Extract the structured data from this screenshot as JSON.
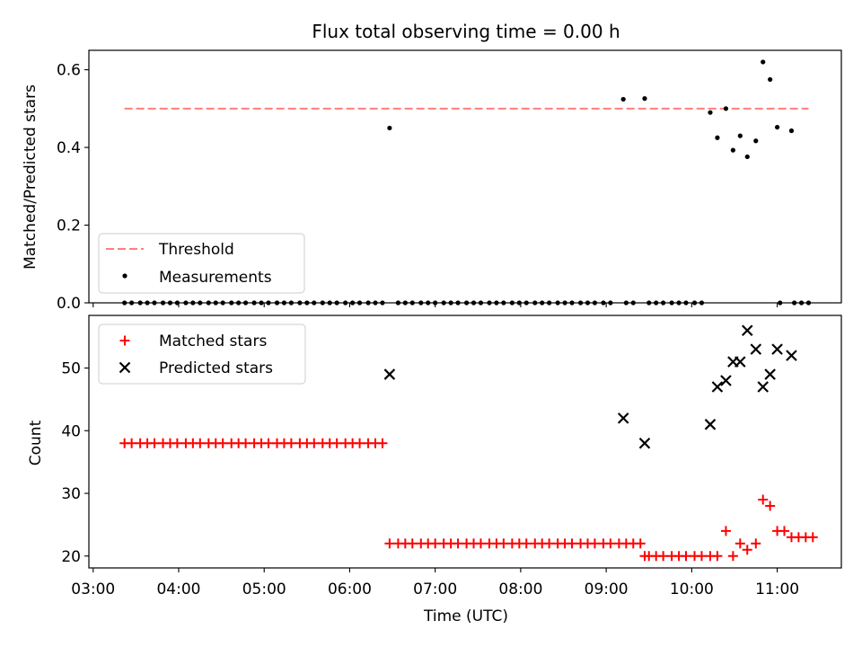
{
  "title": "Flux total observing time = 0.00 h",
  "colors": {
    "threshold": "#ff7f7f",
    "measurements": "#000000",
    "matched": "#ff0000",
    "predicted": "#000000"
  },
  "chart_data": [
    {
      "type": "scatter",
      "ylabel": "Matched/Predicted stars",
      "xlim": [
        "02:57",
        "11:45"
      ],
      "ylim": [
        0.0,
        0.65
      ],
      "yticks": [
        "0.0",
        "0.2",
        "0.4",
        "0.6"
      ],
      "legend_position": "lower-left",
      "threshold": {
        "name": "Threshold",
        "value": 0.5,
        "x_range": [
          "03:22",
          "11:22"
        ]
      },
      "series": [
        {
          "name": "Measurements",
          "marker": "dot",
          "points": [
            [
              "03:22",
              0
            ],
            [
              "03:27",
              0
            ],
            [
              "03:33",
              0
            ],
            [
              "03:38",
              0
            ],
            [
              "03:43",
              0
            ],
            [
              "03:49",
              0
            ],
            [
              "03:54",
              0
            ],
            [
              "03:59",
              0
            ],
            [
              "04:05",
              0
            ],
            [
              "04:10",
              0
            ],
            [
              "04:15",
              0
            ],
            [
              "04:21",
              0
            ],
            [
              "04:26",
              0
            ],
            [
              "04:31",
              0
            ],
            [
              "04:37",
              0
            ],
            [
              "04:42",
              0
            ],
            [
              "04:47",
              0
            ],
            [
              "04:53",
              0
            ],
            [
              "04:58",
              0
            ],
            [
              "05:03",
              0
            ],
            [
              "05:09",
              0
            ],
            [
              "05:14",
              0
            ],
            [
              "05:19",
              0
            ],
            [
              "05:25",
              0
            ],
            [
              "05:30",
              0
            ],
            [
              "05:35",
              0
            ],
            [
              "05:41",
              0
            ],
            [
              "05:46",
              0
            ],
            [
              "05:51",
              0
            ],
            [
              "05:57",
              0
            ],
            [
              "06:02",
              0
            ],
            [
              "06:07",
              0
            ],
            [
              "06:13",
              0
            ],
            [
              "06:18",
              0
            ],
            [
              "06:23",
              0
            ],
            [
              "06:28",
              0.45
            ],
            [
              "06:34",
              0
            ],
            [
              "06:39",
              0
            ],
            [
              "06:44",
              0
            ],
            [
              "06:50",
              0
            ],
            [
              "06:55",
              0
            ],
            [
              "07:00",
              0
            ],
            [
              "07:06",
              0
            ],
            [
              "07:11",
              0
            ],
            [
              "07:16",
              0
            ],
            [
              "07:22",
              0
            ],
            [
              "07:27",
              0
            ],
            [
              "07:32",
              0
            ],
            [
              "07:38",
              0
            ],
            [
              "07:43",
              0
            ],
            [
              "07:48",
              0
            ],
            [
              "07:54",
              0
            ],
            [
              "07:59",
              0
            ],
            [
              "08:04",
              0
            ],
            [
              "08:10",
              0
            ],
            [
              "08:15",
              0
            ],
            [
              "08:20",
              0
            ],
            [
              "08:26",
              0
            ],
            [
              "08:31",
              0
            ],
            [
              "08:36",
              0
            ],
            [
              "08:42",
              0
            ],
            [
              "08:47",
              0
            ],
            [
              "08:52",
              0
            ],
            [
              "08:58",
              0
            ],
            [
              "09:03",
              0
            ],
            [
              "09:12",
              0.524
            ],
            [
              "09:14",
              0
            ],
            [
              "09:19",
              0
            ],
            [
              "09:27",
              0.526
            ],
            [
              "09:30",
              0
            ],
            [
              "09:35",
              0
            ],
            [
              "09:40",
              0
            ],
            [
              "09:46",
              0
            ],
            [
              "09:51",
              0
            ],
            [
              "09:56",
              0
            ],
            [
              "10:02",
              0
            ],
            [
              "10:07",
              0
            ],
            [
              "10:13",
              0.49
            ],
            [
              "10:18",
              0.425
            ],
            [
              "10:24",
              0.5
            ],
            [
              "10:29",
              0.393
            ],
            [
              "10:34",
              0.43
            ],
            [
              "10:39",
              0.376
            ],
            [
              "10:45",
              0.417
            ],
            [
              "10:50",
              0.62
            ],
            [
              "10:55",
              0.575
            ],
            [
              "11:00",
              0.452
            ],
            [
              "11:02",
              0
            ],
            [
              "11:10",
              0.443
            ],
            [
              "11:12",
              0
            ],
            [
              "11:17",
              0
            ],
            [
              "11:22",
              0
            ]
          ]
        }
      ]
    },
    {
      "type": "scatter",
      "xlabel": "Time (UTC)",
      "ylabel": "Count",
      "xlim": [
        "02:57",
        "11:45"
      ],
      "ylim": [
        18.1,
        58.4
      ],
      "yticks": [
        "20",
        "30",
        "40",
        "50"
      ],
      "xticks": [
        "03:00",
        "04:00",
        "05:00",
        "06:00",
        "07:00",
        "08:00",
        "09:00",
        "10:00",
        "11:00"
      ],
      "legend_position": "upper-left",
      "series": [
        {
          "name": "Matched stars",
          "marker": "plus",
          "points": [
            [
              "03:22",
              38
            ],
            [
              "03:27",
              38
            ],
            [
              "03:33",
              38
            ],
            [
              "03:38",
              38
            ],
            [
              "03:43",
              38
            ],
            [
              "03:49",
              38
            ],
            [
              "03:54",
              38
            ],
            [
              "03:59",
              38
            ],
            [
              "04:05",
              38
            ],
            [
              "04:10",
              38
            ],
            [
              "04:15",
              38
            ],
            [
              "04:21",
              38
            ],
            [
              "04:26",
              38
            ],
            [
              "04:31",
              38
            ],
            [
              "04:37",
              38
            ],
            [
              "04:42",
              38
            ],
            [
              "04:47",
              38
            ],
            [
              "04:53",
              38
            ],
            [
              "04:58",
              38
            ],
            [
              "05:03",
              38
            ],
            [
              "05:09",
              38
            ],
            [
              "05:14",
              38
            ],
            [
              "05:19",
              38
            ],
            [
              "05:25",
              38
            ],
            [
              "05:30",
              38
            ],
            [
              "05:35",
              38
            ],
            [
              "05:41",
              38
            ],
            [
              "05:46",
              38
            ],
            [
              "05:51",
              38
            ],
            [
              "05:57",
              38
            ],
            [
              "06:02",
              38
            ],
            [
              "06:07",
              38
            ],
            [
              "06:13",
              38
            ],
            [
              "06:18",
              38
            ],
            [
              "06:23",
              38
            ],
            [
              "06:28",
              22
            ],
            [
              "06:34",
              22
            ],
            [
              "06:39",
              22
            ],
            [
              "06:44",
              22
            ],
            [
              "06:50",
              22
            ],
            [
              "06:55",
              22
            ],
            [
              "07:00",
              22
            ],
            [
              "07:06",
              22
            ],
            [
              "07:11",
              22
            ],
            [
              "07:16",
              22
            ],
            [
              "07:22",
              22
            ],
            [
              "07:27",
              22
            ],
            [
              "07:32",
              22
            ],
            [
              "07:38",
              22
            ],
            [
              "07:43",
              22
            ],
            [
              "07:48",
              22
            ],
            [
              "07:54",
              22
            ],
            [
              "07:59",
              22
            ],
            [
              "08:04",
              22
            ],
            [
              "08:10",
              22
            ],
            [
              "08:15",
              22
            ],
            [
              "08:20",
              22
            ],
            [
              "08:26",
              22
            ],
            [
              "08:31",
              22
            ],
            [
              "08:36",
              22
            ],
            [
              "08:42",
              22
            ],
            [
              "08:47",
              22
            ],
            [
              "08:52",
              22
            ],
            [
              "08:58",
              22
            ],
            [
              "09:03",
              22
            ],
            [
              "09:09",
              22
            ],
            [
              "09:14",
              22
            ],
            [
              "09:19",
              22
            ],
            [
              "09:24",
              22
            ],
            [
              "09:27",
              20
            ],
            [
              "09:30",
              20
            ],
            [
              "09:35",
              20
            ],
            [
              "09:40",
              20
            ],
            [
              "09:46",
              20
            ],
            [
              "09:51",
              20
            ],
            [
              "09:56",
              20
            ],
            [
              "10:02",
              20
            ],
            [
              "10:07",
              20
            ],
            [
              "10:13",
              20
            ],
            [
              "10:18",
              20
            ],
            [
              "10:24",
              24
            ],
            [
              "10:29",
              20
            ],
            [
              "10:34",
              22
            ],
            [
              "10:39",
              21
            ],
            [
              "10:45",
              22
            ],
            [
              "10:50",
              29
            ],
            [
              "10:55",
              28
            ],
            [
              "11:00",
              24
            ],
            [
              "11:05",
              24
            ],
            [
              "11:10",
              23
            ],
            [
              "11:15",
              23
            ],
            [
              "11:20",
              23
            ],
            [
              "11:25",
              23
            ]
          ]
        },
        {
          "name": "Predicted stars",
          "marker": "x",
          "points": [
            [
              "06:28",
              49
            ],
            [
              "09:12",
              42
            ],
            [
              "09:27",
              38
            ],
            [
              "10:13",
              41
            ],
            [
              "10:18",
              47
            ],
            [
              "10:24",
              48
            ],
            [
              "10:29",
              51
            ],
            [
              "10:34",
              51
            ],
            [
              "10:39",
              56
            ],
            [
              "10:45",
              53
            ],
            [
              "10:50",
              47
            ],
            [
              "10:55",
              49
            ],
            [
              "11:00",
              53
            ],
            [
              "11:10",
              52
            ]
          ]
        }
      ]
    }
  ]
}
